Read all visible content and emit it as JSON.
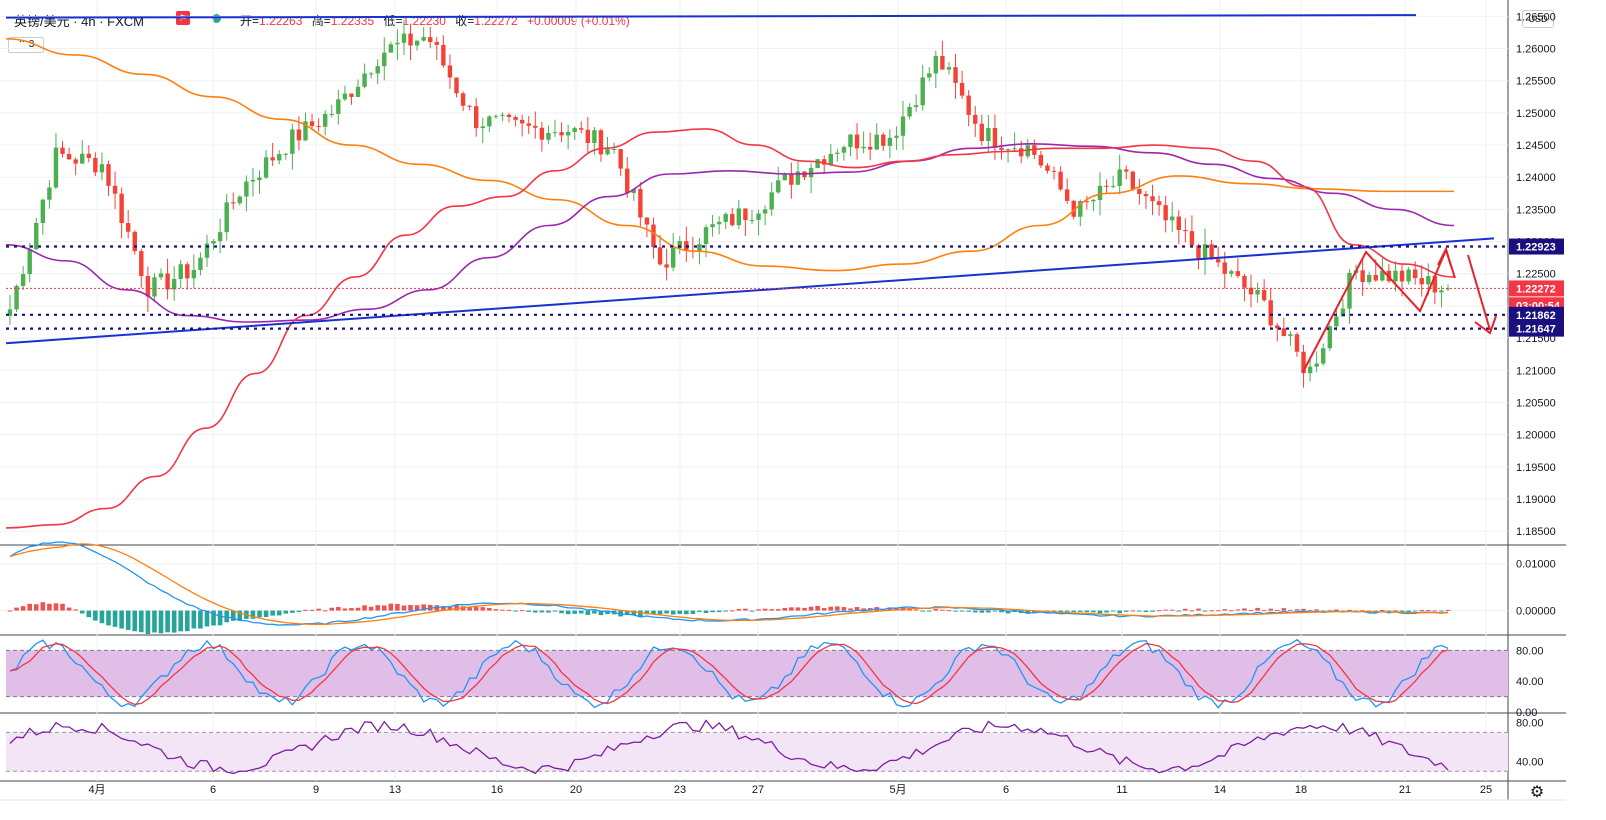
{
  "header": {
    "symbol": "英镑/美元 · 4h · FXCM",
    "flag_icon": "flag-icon",
    "status_dot_color": "#26a69a",
    "ohlc": [
      {
        "key": "开=",
        "value": "1.22263"
      },
      {
        "key": "高=",
        "value": "1.22335"
      },
      {
        "key": "低=",
        "value": "1.22230"
      },
      {
        "key": "收=",
        "value": "1.22272"
      },
      {
        "key": "",
        "value": "+0.00009 (+0.01%)"
      }
    ],
    "indicator_count": "3",
    "currency": "USD",
    "settings_icon": "gear-icon"
  },
  "colors": {
    "up": "#26a69a",
    "down": "#f23645",
    "bull_candle": "#4caf50",
    "bear_candle": "#f44336",
    "trend": "#1a31d2",
    "ema_short": "#f23645",
    "ema_mid": "#9c27b0",
    "ema_long": "#ff7f0e",
    "level_dotted": "#1a0f7e",
    "stoch_band": "#e1bee7",
    "rsi_band": "#f3e5f5"
  },
  "price_axis": {
    "ticks": [
      "1.26500",
      "1.26000",
      "1.25500",
      "1.25000",
      "1.24500",
      "1.24000",
      "1.23500",
      "1.23000",
      "1.22500",
      "1.22000",
      "1.21500",
      "1.21000",
      "1.20500",
      "1.20000",
      "1.19500",
      "1.19000",
      "1.18500"
    ],
    "labels": [
      {
        "text": "1.22923",
        "price": 1.22923,
        "color": "#1a0f7e"
      },
      {
        "text": "1.22272",
        "price": 1.22272,
        "color": "#f23645"
      },
      {
        "text": "03:00:54",
        "price": 1.2201,
        "color": "#f23645"
      },
      {
        "text": "1.21862",
        "price": 1.21862,
        "color": "#1a0f7e"
      },
      {
        "text": "1.21647",
        "price": 1.21647,
        "color": "#1a0f7e"
      }
    ]
  },
  "macd_axis": {
    "ticks": [
      "0.01000",
      "0.00000"
    ]
  },
  "stoch_axis": {
    "ticks": [
      "80.00",
      "40.00",
      "0.00"
    ]
  },
  "rsi_axis": {
    "ticks": [
      "80.00",
      "40.00"
    ]
  },
  "time_axis": {
    "ticks": [
      "4月",
      "6",
      "9",
      "13",
      "16",
      "20",
      "23",
      "27",
      "5月",
      "6",
      "11",
      "14",
      "18",
      "21",
      "25"
    ]
  },
  "chart_data": {
    "type": "candlestick",
    "instrument": "英镑/美元",
    "timeframe": "4h",
    "source": "FXCM",
    "price_range": [
      1.183,
      1.2663
    ],
    "last": {
      "open": 1.22263,
      "high": 1.22335,
      "low": 1.2223,
      "close": 1.22272,
      "change": 9e-05,
      "change_pct": 0.01
    },
    "anchor_prices": [
      {
        "t": "4月",
        "price": 1.2195
      },
      {
        "t": "",
        "price": 1.2435
      },
      {
        "t": "",
        "price": 1.242
      },
      {
        "t": "6",
        "price": 1.2225
      },
      {
        "t": "",
        "price": 1.226
      },
      {
        "t": "9",
        "price": 1.2385
      },
      {
        "t": "",
        "price": 1.2455
      },
      {
        "t": "13",
        "price": 1.2505
      },
      {
        "t": "",
        "price": 1.2595
      },
      {
        "t": "15",
        "price": 1.262
      },
      {
        "t": "16",
        "price": 1.249
      },
      {
        "t": "",
        "price": 1.2475
      },
      {
        "t": "20",
        "price": 1.2475
      },
      {
        "t": "",
        "price": 1.2445
      },
      {
        "t": "",
        "price": 1.2265
      },
      {
        "t": "23",
        "price": 1.2315
      },
      {
        "t": "",
        "price": 1.235
      },
      {
        "t": "27",
        "price": 1.241
      },
      {
        "t": "",
        "price": 1.2455
      },
      {
        "t": "5月",
        "price": 1.2465
      },
      {
        "t": "",
        "price": 1.2585
      },
      {
        "t": "",
        "price": 1.2465
      },
      {
        "t": "6",
        "price": 1.2445
      },
      {
        "t": "",
        "price": 1.2345
      },
      {
        "t": "11",
        "price": 1.24
      },
      {
        "t": "",
        "price": 1.2325
      },
      {
        "t": "14",
        "price": 1.2265
      },
      {
        "t": "",
        "price": 1.2205
      },
      {
        "t": "18",
        "price": 1.2095
      },
      {
        "t": "",
        "price": 1.2255
      },
      {
        "t": "21",
        "price": 1.2245
      },
      {
        "t": "",
        "price": 1.22272
      }
    ],
    "levels": [
      1.22923,
      1.22272,
      1.21862,
      1.21647
    ],
    "indicators": {
      "ema_short_path": [
        1.1855,
        1.186,
        1.1885,
        1.1935,
        1.201,
        1.2095,
        1.2185,
        1.2245,
        1.231,
        1.2355,
        1.237,
        1.241,
        1.2445,
        1.247,
        1.2475,
        1.245,
        1.2425,
        1.2415,
        1.2425,
        1.2435,
        1.244,
        1.2445,
        1.2445,
        1.245,
        1.2445,
        1.2425,
        1.2385,
        1.2295,
        1.2265,
        1.2245
      ],
      "ema_mid_path": [
        1.2295,
        1.227,
        1.2225,
        1.2185,
        1.2175,
        1.2178,
        1.2195,
        1.2225,
        1.2275,
        1.2325,
        1.237,
        1.2405,
        1.241,
        1.2405,
        1.2408,
        1.2425,
        1.2445,
        1.2452,
        1.2448,
        1.2438,
        1.242,
        1.2398,
        1.2375,
        1.235,
        1.2325
      ],
      "ema_long_path": [
        1.2615,
        1.259,
        1.256,
        1.2525,
        1.249,
        1.245,
        1.242,
        1.2395,
        1.2365,
        1.2325,
        1.2285,
        1.2262,
        1.2255,
        1.2265,
        1.2285,
        1.2325,
        1.2375,
        1.2402,
        1.239,
        1.2382,
        1.2378,
        1.2378
      ],
      "macd_range": [
        -0.005,
        0.014
      ],
      "stoch_range": [
        0,
        100
      ],
      "rsi_range": [
        20,
        90
      ]
    }
  }
}
